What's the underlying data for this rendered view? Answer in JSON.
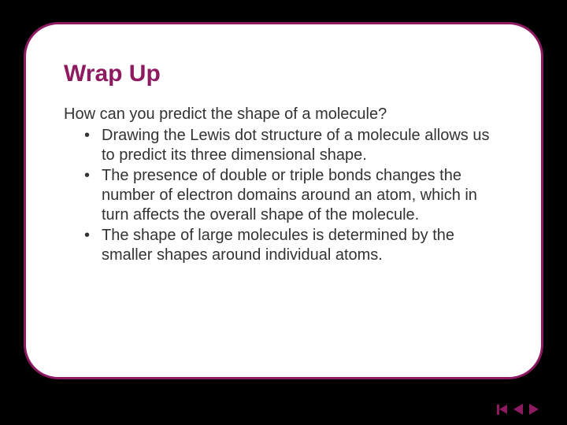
{
  "slide": {
    "title": "Wrap Up",
    "question": "How can you predict the shape of a molecule?",
    "bullets": [
      "Drawing the Lewis dot structure of a molecule allows us to predict its three dimensional shape.",
      "The presence of double or triple bonds changes the number of electron domains around an atom, which in turn affects the overall shape of the molecule.",
      "The shape of large molecules is determined by the smaller shapes around individual atoms."
    ]
  },
  "colors": {
    "accent": "#8e1a62",
    "background": "#000000",
    "card": "#ffffff",
    "text": "#333333"
  },
  "typography": {
    "title_fontsize": 30,
    "body_fontsize": 20,
    "font_family": "Arial"
  },
  "layout": {
    "slide_width": 720,
    "slide_height": 540,
    "card_border_radius": 44,
    "card_border_width": 3
  }
}
